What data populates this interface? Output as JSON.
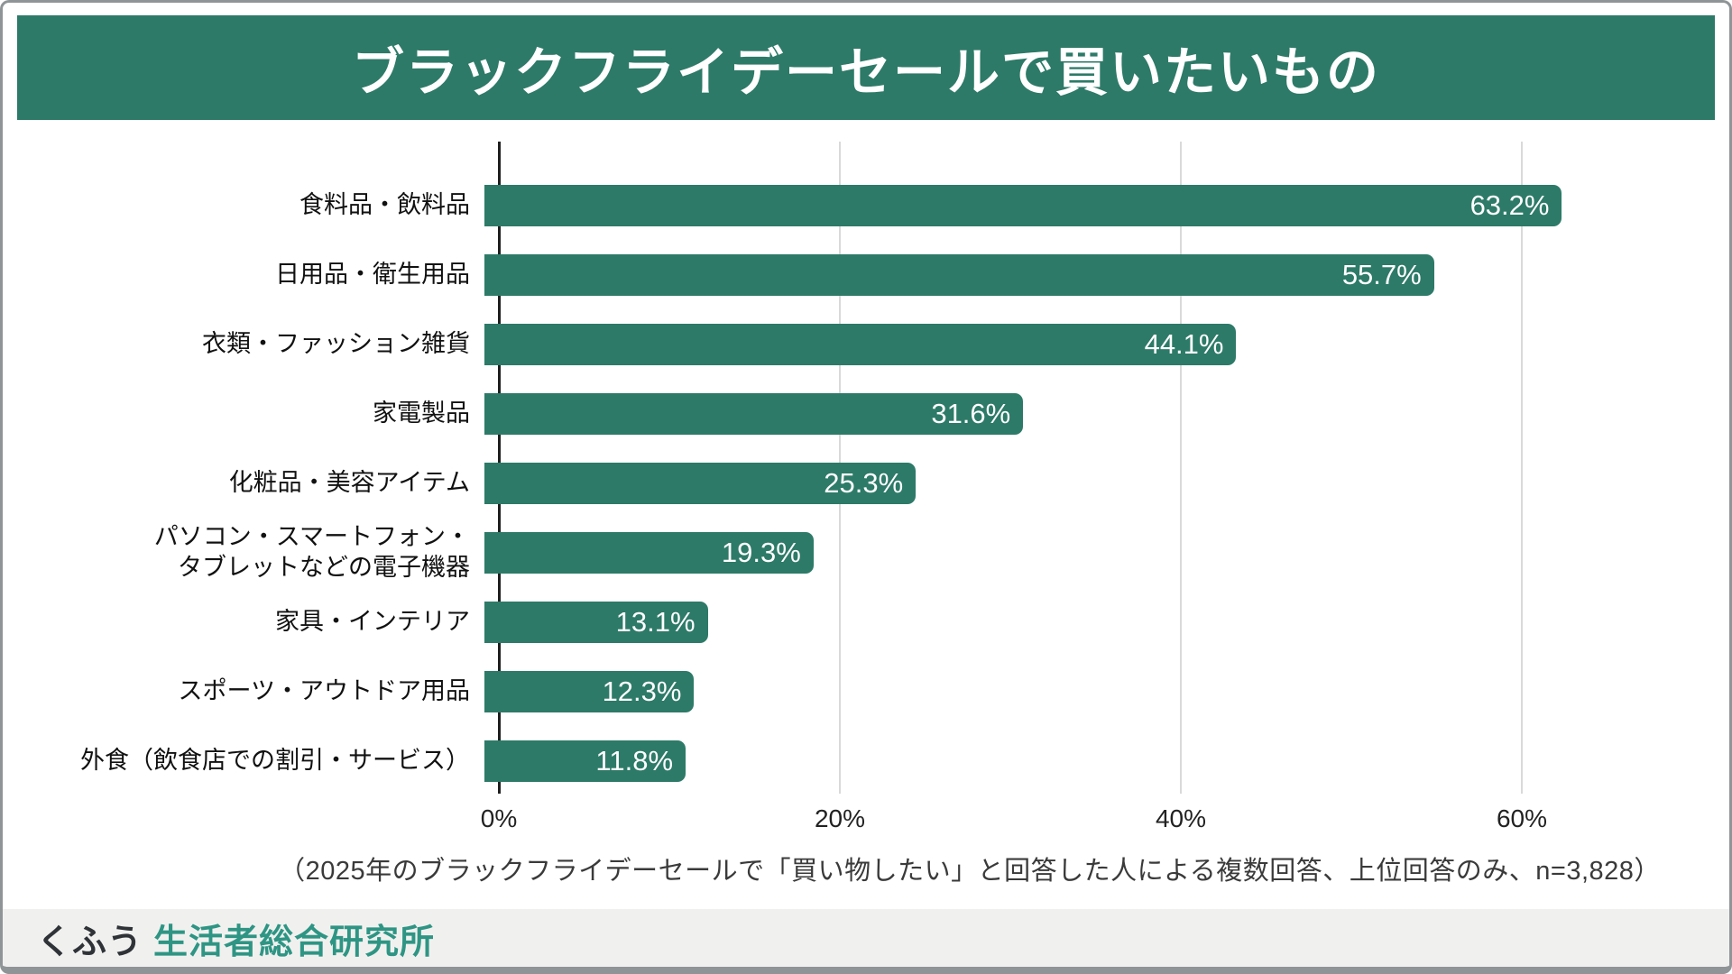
{
  "title": "ブラックフライデーセールで買いたいもの",
  "chart_data": {
    "type": "bar",
    "orientation": "horizontal",
    "title": "ブラックフライデーセールで買いたいもの",
    "categories": [
      "食料品・飲料品",
      "日用品・衛生用品",
      "衣類・ファッション雑貨",
      "家電製品",
      "化粧品・美容アイテム",
      "パソコン・スマートフォン・\nタブレットなどの電子機器",
      "家具・インテリア",
      "スポーツ・アウトドア用品",
      "外食（飲食店での割引・サービス）"
    ],
    "values": [
      63.2,
      55.7,
      44.1,
      31.6,
      25.3,
      19.3,
      13.1,
      12.3,
      11.8
    ],
    "value_labels": [
      "63.2%",
      "55.7%",
      "44.1%",
      "31.6%",
      "25.3%",
      "19.3%",
      "13.1%",
      "12.3%",
      "11.8%"
    ],
    "x_ticks": [
      "0%",
      "20%",
      "40%",
      "60%"
    ],
    "x_tick_values": [
      0,
      20,
      40,
      60
    ],
    "xlim": [
      0,
      70
    ],
    "grid": true,
    "legend": false,
    "bar_color": "#2d7a68",
    "value_label_position": "inside-end"
  },
  "footnote": "（2025年のブラックフライデーセールで「買い物したい」と回答した人による複数回答、上位回答のみ、n=3,828）",
  "footer": {
    "brand_prefix": "くふう",
    "brand_name": "生活者総合研究所"
  },
  "colors": {
    "banner_bg": "#2d7a68",
    "bar": "#2d7a68",
    "gridline": "#d9d9d9",
    "axis": "#1f1f1f",
    "footer_bg": "#f0f1ef",
    "brand_teal": "#2e9584"
  }
}
